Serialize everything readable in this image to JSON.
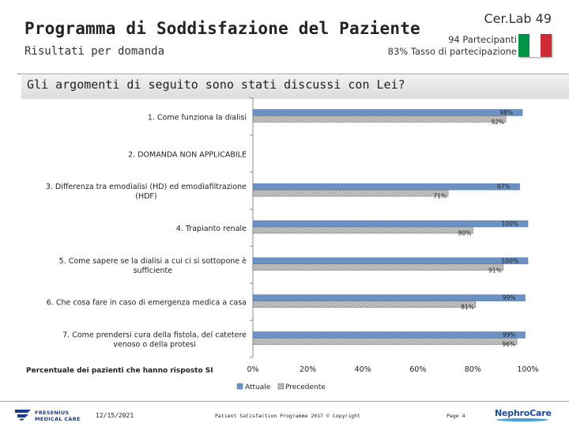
{
  "header": {
    "title": "Programma di Soddisfazione del Paziente",
    "subtitle": "Risultati per domanda",
    "lab_name": "Cer.Lab 49",
    "participants": "94 Partecipanti",
    "participation_rate": "83% Tasso di partecipazione",
    "flag_colors": [
      "#009246",
      "#ffffff",
      "#ce2b37"
    ]
  },
  "question": {
    "text": "Gli argomenti di seguito sono stati discussi con Lei?"
  },
  "colors": {
    "actual": "#6c92c4",
    "previous": "#c9c9c9",
    "axis": "#888888"
  },
  "chart_data": {
    "type": "bar",
    "orientation": "horizontal",
    "categories": [
      [
        "1. Come funziona la dialisi"
      ],
      [
        "2. DOMANDA NON APPLICABILE"
      ],
      [
        "3. Differenza tra emodialisi (HD) ed emodiafiltrazione",
        "(HDF)"
      ],
      [
        "4. Trapianto renale"
      ],
      [
        "5. Come sapere se la dialisi a cui ci si sottopone è",
        "sufficiente"
      ],
      [
        "6. Che cosa fare in caso di emergenza medica a casa"
      ],
      [
        "7. Come prendersi cura della fistola, del catetere",
        "venoso o della protesi"
      ]
    ],
    "series": [
      {
        "name": "Attuale",
        "values": [
          98,
          null,
          97,
          100,
          100,
          99,
          99
        ],
        "labels": [
          "98%",
          "",
          "97%",
          "100%",
          "100%",
          "99%",
          "99%"
        ]
      },
      {
        "name": "Precedente",
        "values": [
          92,
          null,
          71,
          80,
          91,
          81,
          96
        ],
        "labels": [
          "92%",
          "",
          "71%",
          "80%",
          "91%",
          "81%",
          "96%"
        ]
      }
    ],
    "xlim": [
      0,
      100
    ],
    "xticks": [
      "0%",
      "20%",
      "40%",
      "60%",
      "80%",
      "100%"
    ],
    "xlabel": "Percentuale dei pazienti che hanno risposto SI",
    "legend_position": "bottom"
  },
  "footer": {
    "date": "12/15/2021",
    "copyright": "Patient Satisfaction Programme 2017 © Copyright",
    "page": "Page 4",
    "fresenius_line1": "FRESENIUS",
    "fresenius_line2": "MEDICAL CARE",
    "nephrocare": "NephroCare"
  }
}
